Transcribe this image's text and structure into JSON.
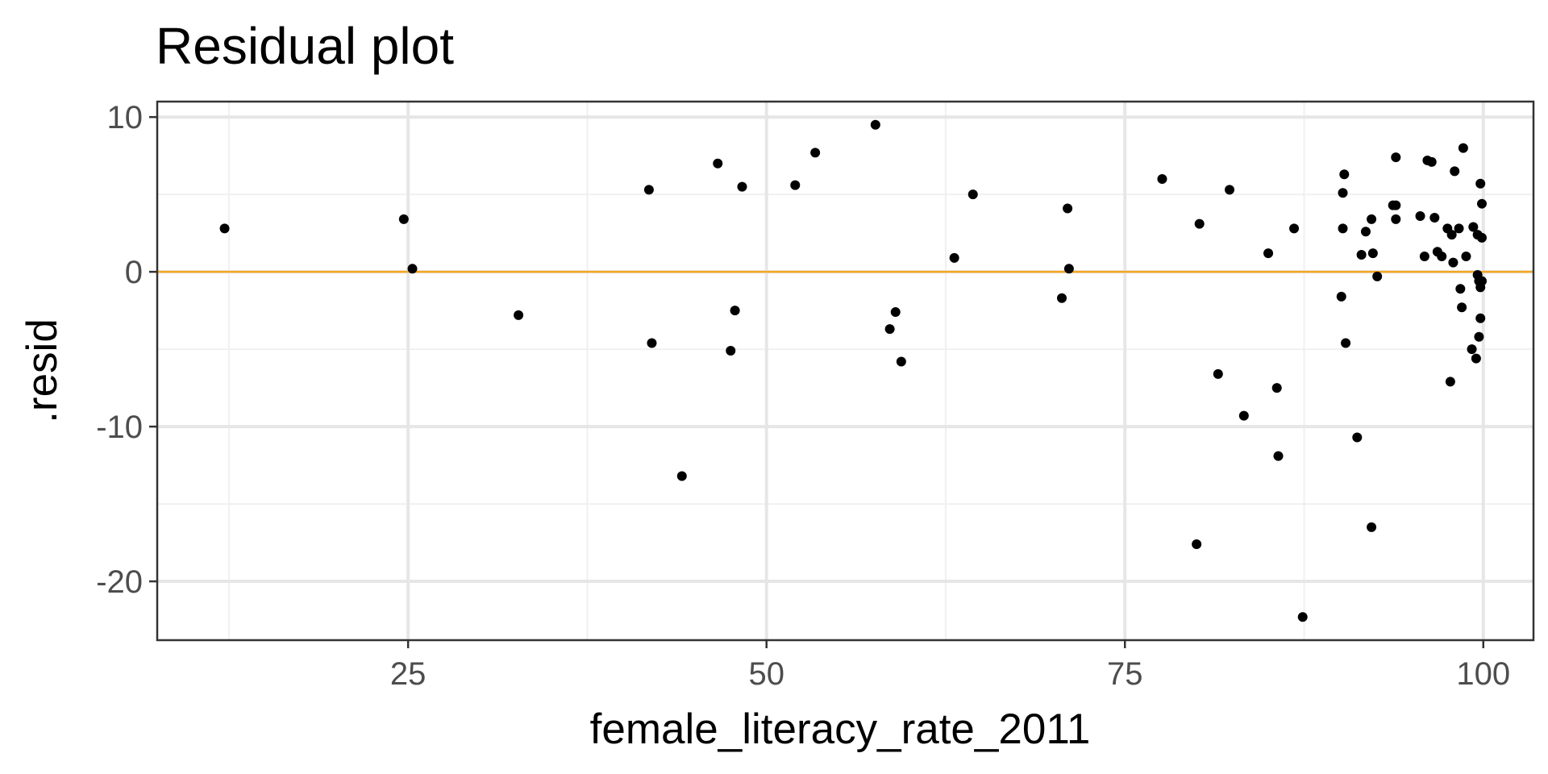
{
  "chart_data": {
    "type": "scatter",
    "title": "Residual plot",
    "xlabel": "female_literacy_rate_2011",
    "ylabel": ".resid",
    "xlim": [
      7.5,
      103.5
    ],
    "ylim": [
      -23.8,
      11.0
    ],
    "x_ticks": [
      25,
      50,
      75,
      100
    ],
    "x_tick_labels": [
      "25",
      "50",
      "75",
      "100"
    ],
    "x_minor_ticks": [
      12.5,
      37.5,
      62.5,
      87.5
    ],
    "y_ticks": [
      10,
      0,
      -10,
      -20
    ],
    "y_tick_labels": [
      "10",
      "0",
      "-10",
      "-20"
    ],
    "y_minor_ticks": [
      5,
      -5,
      -15
    ],
    "grid": true,
    "reference_line": {
      "y": 0,
      "color": "#f5a623"
    },
    "point_color": "#000000",
    "points": [
      {
        "x": 12.2,
        "y": 2.8
      },
      {
        "x": 24.7,
        "y": 3.4
      },
      {
        "x": 25.3,
        "y": 0.2
      },
      {
        "x": 32.7,
        "y": -2.8
      },
      {
        "x": 41.8,
        "y": 5.3
      },
      {
        "x": 42.0,
        "y": -4.6
      },
      {
        "x": 44.1,
        "y": -13.2
      },
      {
        "x": 46.6,
        "y": 7.0
      },
      {
        "x": 47.5,
        "y": -5.1
      },
      {
        "x": 47.8,
        "y": -2.5
      },
      {
        "x": 48.3,
        "y": 5.5
      },
      {
        "x": 52.0,
        "y": 5.6
      },
      {
        "x": 53.4,
        "y": 7.7
      },
      {
        "x": 57.6,
        "y": 9.5
      },
      {
        "x": 58.6,
        "y": -3.7
      },
      {
        "x": 59.0,
        "y": -2.6
      },
      {
        "x": 59.4,
        "y": -5.8
      },
      {
        "x": 63.1,
        "y": 0.9
      },
      {
        "x": 64.4,
        "y": 5.0
      },
      {
        "x": 70.6,
        "y": -1.7
      },
      {
        "x": 71.0,
        "y": 4.1
      },
      {
        "x": 71.1,
        "y": 0.2
      },
      {
        "x": 77.6,
        "y": 6.0
      },
      {
        "x": 80.0,
        "y": -17.6
      },
      {
        "x": 80.2,
        "y": 3.1
      },
      {
        "x": 81.5,
        "y": -6.6
      },
      {
        "x": 82.3,
        "y": 5.3
      },
      {
        "x": 83.3,
        "y": -9.3
      },
      {
        "x": 85.0,
        "y": 1.2
      },
      {
        "x": 85.6,
        "y": -7.5
      },
      {
        "x": 85.7,
        "y": -11.9
      },
      {
        "x": 86.8,
        "y": 2.8
      },
      {
        "x": 87.4,
        "y": -22.3
      },
      {
        "x": 90.1,
        "y": -1.6
      },
      {
        "x": 90.2,
        "y": 5.1
      },
      {
        "x": 90.2,
        "y": 2.8
      },
      {
        "x": 90.3,
        "y": 6.3
      },
      {
        "x": 90.4,
        "y": -4.6
      },
      {
        "x": 91.2,
        "y": -10.7
      },
      {
        "x": 91.5,
        "y": 1.1
      },
      {
        "x": 91.8,
        "y": 2.6
      },
      {
        "x": 92.2,
        "y": 3.4
      },
      {
        "x": 92.2,
        "y": -16.5
      },
      {
        "x": 92.3,
        "y": 1.2
      },
      {
        "x": 92.6,
        "y": -0.3
      },
      {
        "x": 93.7,
        "y": 4.3
      },
      {
        "x": 93.9,
        "y": 7.4
      },
      {
        "x": 93.9,
        "y": 4.3
      },
      {
        "x": 93.9,
        "y": 3.4
      },
      {
        "x": 95.6,
        "y": 3.6
      },
      {
        "x": 95.9,
        "y": 1.0
      },
      {
        "x": 96.1,
        "y": 7.2
      },
      {
        "x": 96.4,
        "y": 7.1
      },
      {
        "x": 96.6,
        "y": 3.5
      },
      {
        "x": 96.8,
        "y": 1.3
      },
      {
        "x": 97.1,
        "y": 1.0
      },
      {
        "x": 97.5,
        "y": 2.8
      },
      {
        "x": 97.7,
        "y": -7.1
      },
      {
        "x": 97.8,
        "y": 2.4
      },
      {
        "x": 97.9,
        "y": 0.6
      },
      {
        "x": 98.0,
        "y": 6.5
      },
      {
        "x": 98.3,
        "y": 2.8
      },
      {
        "x": 98.4,
        "y": -1.1
      },
      {
        "x": 98.5,
        "y": -2.3
      },
      {
        "x": 98.6,
        "y": 8.0
      },
      {
        "x": 98.8,
        "y": 1.0
      },
      {
        "x": 99.2,
        "y": -5.0
      },
      {
        "x": 99.3,
        "y": 2.9
      },
      {
        "x": 99.5,
        "y": -5.6
      },
      {
        "x": 99.6,
        "y": 2.4
      },
      {
        "x": 99.6,
        "y": -0.2
      },
      {
        "x": 99.7,
        "y": -4.2
      },
      {
        "x": 99.7,
        "y": -0.6
      },
      {
        "x": 99.8,
        "y": -1.0
      },
      {
        "x": 99.8,
        "y": -3.0
      },
      {
        "x": 99.8,
        "y": 5.7
      },
      {
        "x": 99.9,
        "y": 2.2
      },
      {
        "x": 99.9,
        "y": 4.4
      },
      {
        "x": 99.9,
        "y": -0.6
      }
    ]
  }
}
